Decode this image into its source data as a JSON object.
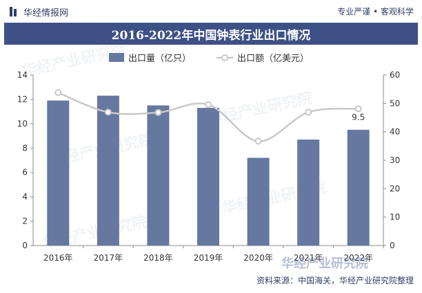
{
  "header": {
    "brand": "华经情报网",
    "slogan": "专业严谨 • 客观科学"
  },
  "title": "2016-2022年中国钟表行业出口情况",
  "source": "资料来源：中国海关，华经产业研究院整理",
  "watermark": "华经产业研究院",
  "colors": {
    "bar": "#66789f",
    "line": "#c8c8c8",
    "title_bg": "#3e5186",
    "text": "#2f3f63"
  },
  "chart_data": {
    "type": "bar",
    "categories": [
      "2016年",
      "2017年",
      "2018年",
      "2019年",
      "2020年",
      "2021年",
      "2022年"
    ],
    "series": [
      {
        "name": "出口量（亿只）",
        "type": "bar",
        "axis": "left",
        "values": [
          11.9,
          12.3,
          11.5,
          11.3,
          7.2,
          8.7,
          9.5
        ]
      },
      {
        "name": "出口额（亿美元）",
        "type": "line",
        "axis": "right",
        "values": [
          53.8,
          46.9,
          46.8,
          49.6,
          36.7,
          46.9,
          48.1
        ]
      }
    ],
    "y_left": {
      "min": 0,
      "max": 14,
      "ticks": [
        0,
        2,
        4,
        6,
        8,
        10,
        12,
        14
      ]
    },
    "y_right": {
      "min": 0,
      "max": 60,
      "ticks": [
        0,
        10,
        20,
        30,
        40,
        50,
        60
      ]
    },
    "data_labels": [
      {
        "series": 0,
        "index": 6,
        "text": "9.5"
      }
    ],
    "legend_position": "top",
    "grid": false
  }
}
